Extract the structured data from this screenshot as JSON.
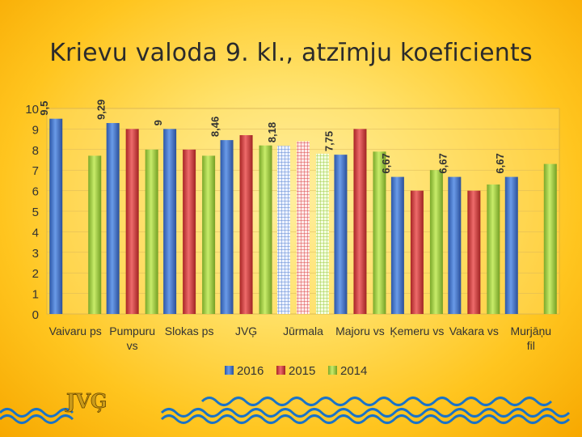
{
  "slide": {
    "title": "Krievu valoda 9. kl., atzīmju koeficients"
  },
  "logo": {
    "text": "JVĢ"
  },
  "colors": {
    "s2016": "#3f6fc4",
    "s2015": "#d43a3a",
    "s2014": "#9fcc3d",
    "axis": "#7a6a40",
    "plot_bg": "#ffe27a"
  },
  "chart_data": {
    "type": "bar",
    "title": "Krievu valoda 9. kl., atzīmju koeficients",
    "categories": [
      "Vaivaru ps",
      "Pumpuru vs",
      "Slokas ps",
      "JVĢ",
      "Jūrmala",
      "Majoru vs",
      "Ķemeru vs",
      "Vakara vs",
      "Murjāņu fil"
    ],
    "category_lines": [
      [
        "Vaivaru ps"
      ],
      [
        "Pumpuru",
        "vs"
      ],
      [
        "Slokas ps"
      ],
      [
        "JVĢ"
      ],
      [
        "Jūrmala"
      ],
      [
        "Majoru vs"
      ],
      [
        "Ķemeru vs"
      ],
      [
        "Vakara vs"
      ],
      [
        "Murjāņu",
        "fil"
      ]
    ],
    "series": [
      {
        "name": "2016",
        "values": [
          9.5,
          9.29,
          9,
          8.46,
          8.18,
          7.75,
          6.67,
          6.67,
          6.67
        ],
        "labels": [
          "9,5",
          "9,29",
          "9",
          "8,46",
          "8,18",
          "7,75",
          "6,67",
          "6,67",
          "6,67"
        ]
      },
      {
        "name": "2015",
        "values": [
          null,
          9.0,
          8.0,
          8.7,
          8.4,
          9.0,
          6.0,
          6.0,
          null
        ]
      },
      {
        "name": "2014",
        "values": [
          7.7,
          8.0,
          7.7,
          8.2,
          7.8,
          7.9,
          7.0,
          6.3,
          7.3
        ]
      }
    ],
    "ylim": [
      0,
      10
    ],
    "yticks": [
      "0",
      "1",
      "2",
      "3",
      "4",
      "5",
      "6",
      "7",
      "8",
      "9",
      "10"
    ],
    "highlighted_category": "Jūrmala",
    "legend_position": "bottom",
    "xlabel": "",
    "ylabel": ""
  }
}
